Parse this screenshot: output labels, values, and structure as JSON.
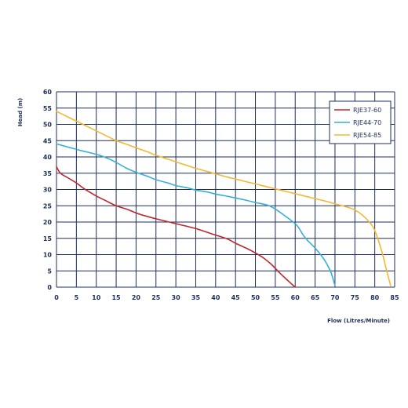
{
  "chart_data": {
    "type": "line",
    "xlabel": "Flow (Litres/Minute)",
    "ylabel": "Head (m)",
    "xlim": [
      0,
      85
    ],
    "ylim": [
      0,
      60
    ],
    "x_ticks": [
      "0",
      "5",
      "10",
      "15",
      "20",
      "25",
      "30",
      "35",
      "40",
      "45",
      "50",
      "55",
      "60",
      "65",
      "70",
      "75",
      "80",
      "85"
    ],
    "y_ticks": [
      "0",
      "5",
      "10",
      "15",
      "20",
      "25",
      "30",
      "35",
      "40",
      "45",
      "50",
      "55",
      "60"
    ],
    "grid": true,
    "legend_position": "top-right",
    "colors": {
      "grid": "#1f2f5c",
      "text": "#1f2f5c"
    },
    "series": [
      {
        "name": "RJE37-60",
        "color": "#c0262d",
        "points": [
          [
            0,
            37
          ],
          [
            1,
            35
          ],
          [
            3,
            33.5
          ],
          [
            5,
            32
          ],
          [
            7,
            30.2
          ],
          [
            10,
            28
          ],
          [
            12,
            26.8
          ],
          [
            15,
            25
          ],
          [
            18,
            23.8
          ],
          [
            20,
            22.8
          ],
          [
            22,
            22
          ],
          [
            25,
            21
          ],
          [
            30,
            19.5
          ],
          [
            35,
            18
          ],
          [
            38,
            16.8
          ],
          [
            40,
            16
          ],
          [
            43,
            14.8
          ],
          [
            45,
            13.5
          ],
          [
            48,
            11.8
          ],
          [
            50,
            10.5
          ],
          [
            52,
            9
          ],
          [
            54,
            7
          ],
          [
            56,
            4.5
          ],
          [
            58,
            2.2
          ],
          [
            60,
            0
          ]
        ]
      },
      {
        "name": "RJE44-70",
        "color": "#36b0d9",
        "points": [
          [
            0,
            44
          ],
          [
            3,
            43
          ],
          [
            6,
            42
          ],
          [
            10,
            40.8
          ],
          [
            13,
            39.5
          ],
          [
            15,
            38.3
          ],
          [
            18,
            36.3
          ],
          [
            20,
            35.3
          ],
          [
            23,
            34
          ],
          [
            25,
            33
          ],
          [
            28,
            32
          ],
          [
            30,
            31.2
          ],
          [
            33,
            30.5
          ],
          [
            35,
            29.8
          ],
          [
            38,
            29.2
          ],
          [
            40,
            28.6
          ],
          [
            43,
            27.9
          ],
          [
            45,
            27.4
          ],
          [
            48,
            26.6
          ],
          [
            50,
            26
          ],
          [
            53,
            25.2
          ],
          [
            55,
            24
          ],
          [
            57,
            22.3
          ],
          [
            60,
            19.5
          ],
          [
            61,
            18
          ],
          [
            62,
            16
          ],
          [
            63,
            14.5
          ],
          [
            65,
            12
          ],
          [
            67,
            9
          ],
          [
            68,
            7
          ],
          [
            69,
            4.5
          ],
          [
            70,
            0.5
          ]
        ]
      },
      {
        "name": "RJE54-85",
        "color": "#f5b731",
        "points": [
          [
            0,
            54
          ],
          [
            3,
            52.2
          ],
          [
            5,
            51
          ],
          [
            8,
            49.2
          ],
          [
            10,
            48
          ],
          [
            13,
            46.2
          ],
          [
            15,
            45
          ],
          [
            18,
            43.7
          ],
          [
            20,
            42.8
          ],
          [
            23,
            41.5
          ],
          [
            25,
            40.5
          ],
          [
            28,
            39.3
          ],
          [
            30,
            38.5
          ],
          [
            33,
            37.3
          ],
          [
            35,
            36.5
          ],
          [
            38,
            35.5
          ],
          [
            40,
            34.8
          ],
          [
            43,
            33.8
          ],
          [
            45,
            33.2
          ],
          [
            48,
            32.3
          ],
          [
            50,
            31.7
          ],
          [
            53,
            30.8
          ],
          [
            55,
            30.2
          ],
          [
            58,
            29.3
          ],
          [
            60,
            28.7
          ],
          [
            63,
            27.8
          ],
          [
            65,
            27.2
          ],
          [
            68,
            26.3
          ],
          [
            70,
            25.6
          ],
          [
            73,
            24.6
          ],
          [
            75,
            23.7
          ],
          [
            77,
            22
          ],
          [
            79,
            19.5
          ],
          [
            80,
            17.5
          ],
          [
            81,
            14
          ],
          [
            82,
            10
          ],
          [
            83,
            5
          ],
          [
            84,
            0.5
          ]
        ]
      }
    ]
  }
}
